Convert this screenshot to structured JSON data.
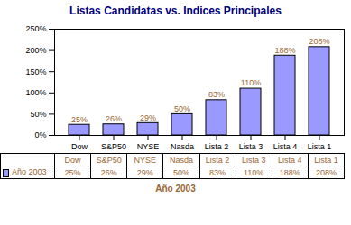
{
  "chart_data": {
    "type": "bar",
    "title": "Listas Candidatas vs. Indices Principales",
    "xlabel": "Año 2003",
    "categories": [
      "Dow",
      "S&P50",
      "NYSE",
      "Nasda",
      "Lista 2",
      "Lista 3",
      "Lista 4",
      "Lista 1"
    ],
    "series": [
      {
        "name": "Año 2003",
        "color": "#9999FF",
        "values": [
          25,
          26,
          29,
          50,
          83,
          110,
          188,
          208
        ],
        "value_labels": [
          "25%",
          "26%",
          "29%",
          "50%",
          "83%",
          "110%",
          "188%",
          "208%"
        ]
      }
    ],
    "ylim": [
      0,
      250
    ],
    "yticks": [
      {
        "value": 0,
        "label": "0%"
      },
      {
        "value": 50,
        "label": "50%"
      },
      {
        "value": 100,
        "label": "100%"
      },
      {
        "value": 150,
        "label": "150%"
      },
      {
        "value": 200,
        "label": "200%"
      },
      {
        "value": 250,
        "label": "250%"
      }
    ],
    "data_labels": true
  }
}
